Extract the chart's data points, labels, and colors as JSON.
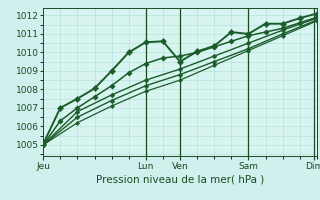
{
  "bg_color": "#d0f0ee",
  "plot_bg": "#d8f4f0",
  "grid_color": "#b0ddd8",
  "line_color": "#1a5c2a",
  "dark_green": "#1a4a20",
  "title": "Pression niveau de la mer( hPa )",
  "ylim": [
    1004.4,
    1012.4
  ],
  "yticks": [
    1005,
    1006,
    1007,
    1008,
    1009,
    1010,
    1011,
    1012
  ],
  "xlim": [
    0,
    96
  ],
  "xtick_positions": [
    0,
    36,
    48,
    72,
    95
  ],
  "xtick_labels": [
    "Jeu",
    "Lun",
    "Ven",
    "Sam",
    "Dim"
  ],
  "vlines": [
    36,
    48,
    72,
    95
  ],
  "series": [
    {
      "x": [
        0,
        6,
        12,
        18,
        24,
        30,
        36,
        42,
        48,
        54,
        60,
        66,
        72,
        78,
        84,
        90,
        96
      ],
      "y": [
        1005.05,
        1007.0,
        1007.5,
        1008.05,
        1009.0,
        1010.0,
        1010.55,
        1010.6,
        1009.5,
        1010.05,
        1010.35,
        1011.1,
        1011.0,
        1011.55,
        1011.55,
        1011.85,
        1012.1
      ],
      "marker": "D",
      "lw": 1.4,
      "ms": 3.2
    },
    {
      "x": [
        0,
        6,
        12,
        18,
        24,
        30,
        36,
        42,
        48,
        54,
        60,
        66,
        72,
        78,
        84,
        90,
        96
      ],
      "y": [
        1005.0,
        1006.3,
        1007.0,
        1007.6,
        1008.2,
        1008.9,
        1009.4,
        1009.7,
        1009.8,
        1010.0,
        1010.3,
        1010.6,
        1010.9,
        1011.1,
        1011.3,
        1011.6,
        1011.9
      ],
      "marker": "D",
      "lw": 1.1,
      "ms": 2.8
    },
    {
      "x": [
        0,
        12,
        24,
        36,
        48,
        60,
        72,
        84,
        96
      ],
      "y": [
        1005.0,
        1006.8,
        1007.7,
        1008.5,
        1009.1,
        1009.8,
        1010.5,
        1011.2,
        1011.85
      ],
      "marker": "D",
      "lw": 1.0,
      "ms": 2.5
    },
    {
      "x": [
        0,
        12,
        24,
        36,
        48,
        60,
        72,
        84,
        96
      ],
      "y": [
        1005.0,
        1006.5,
        1007.4,
        1008.2,
        1008.8,
        1009.5,
        1010.2,
        1011.0,
        1011.75
      ],
      "marker": "D",
      "lw": 1.0,
      "ms": 2.5
    },
    {
      "x": [
        0,
        12,
        24,
        36,
        48,
        60,
        72,
        84,
        96
      ],
      "y": [
        1005.0,
        1006.2,
        1007.1,
        1007.9,
        1008.5,
        1009.3,
        1010.1,
        1010.9,
        1011.7
      ],
      "marker": "D",
      "lw": 0.9,
      "ms": 2.2
    }
  ]
}
